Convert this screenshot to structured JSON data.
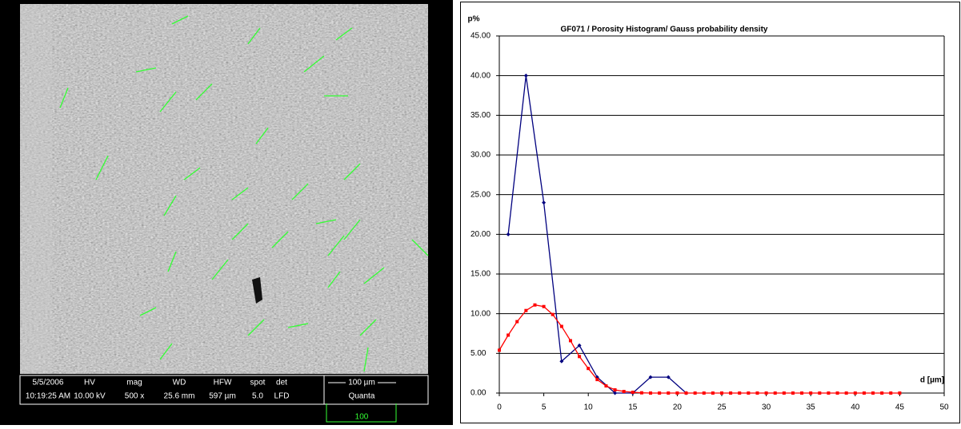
{
  "micrograph": {
    "info_top": [
      "5/5/2006",
      "HV",
      "mag",
      "WD",
      "HFW",
      "spot",
      "det"
    ],
    "info_bottom": [
      "10:19:25 AM",
      "10.00 kV",
      "500 x",
      "25.6 mm",
      "597 µm",
      "5.0",
      "LFD"
    ],
    "scale_bar": "100 µm",
    "instrument": "Quanta",
    "scale_note": "100"
  },
  "chart_data": {
    "type": "line",
    "title": "GF071 / Porosity Histogram/ Gauss probability density",
    "y_label": "p%",
    "x_label": "d [µm]",
    "xlim": [
      0,
      50
    ],
    "xticks": [
      0,
      5,
      10,
      15,
      20,
      25,
      30,
      35,
      40,
      45,
      50
    ],
    "ylim": [
      0,
      45
    ],
    "yticks": [
      {
        "value": 0,
        "label": "0.00"
      },
      {
        "value": 5,
        "label": "5.00"
      },
      {
        "value": 10,
        "label": "10.00"
      },
      {
        "value": 15,
        "label": "15.00"
      },
      {
        "value": 20,
        "label": "20.00"
      },
      {
        "value": 25,
        "label": "25.00"
      },
      {
        "value": 30,
        "label": "30.00"
      },
      {
        "value": 35,
        "label": "35.00"
      },
      {
        "value": 40,
        "label": "40.00"
      },
      {
        "value": 45,
        "label": "45.00"
      }
    ],
    "grid": true,
    "series": [
      {
        "color": "#00007f",
        "marker": "diamond",
        "x": [
          1,
          3,
          5,
          7,
          9,
          11,
          13,
          15,
          17,
          19,
          21
        ],
        "values": [
          20,
          40,
          24,
          4,
          6,
          2,
          0,
          0,
          2,
          2,
          0
        ]
      },
      {
        "color": "#ff0000",
        "marker": "square",
        "x": [
          0,
          1,
          2,
          3,
          4,
          5,
          6,
          7,
          8,
          9,
          10,
          11,
          12,
          13,
          14,
          15,
          16,
          17,
          18,
          19,
          20,
          21,
          22,
          23,
          24,
          25,
          26,
          27,
          28,
          29,
          30,
          31,
          32,
          33,
          34,
          35,
          36,
          37,
          38,
          39,
          40,
          41,
          42,
          43,
          44,
          45
        ],
        "values": [
          5.4,
          7.3,
          9.0,
          10.4,
          11.1,
          10.9,
          9.9,
          8.4,
          6.6,
          4.6,
          3.1,
          1.7,
          0.9,
          0.4,
          0.2,
          0.1,
          0.03,
          0,
          0,
          0,
          0,
          0,
          0,
          0,
          0,
          0,
          0,
          0,
          0,
          0,
          0,
          0,
          0,
          0,
          0,
          0,
          0,
          0,
          0,
          0,
          0,
          0,
          0,
          0,
          0,
          0
        ]
      }
    ]
  }
}
